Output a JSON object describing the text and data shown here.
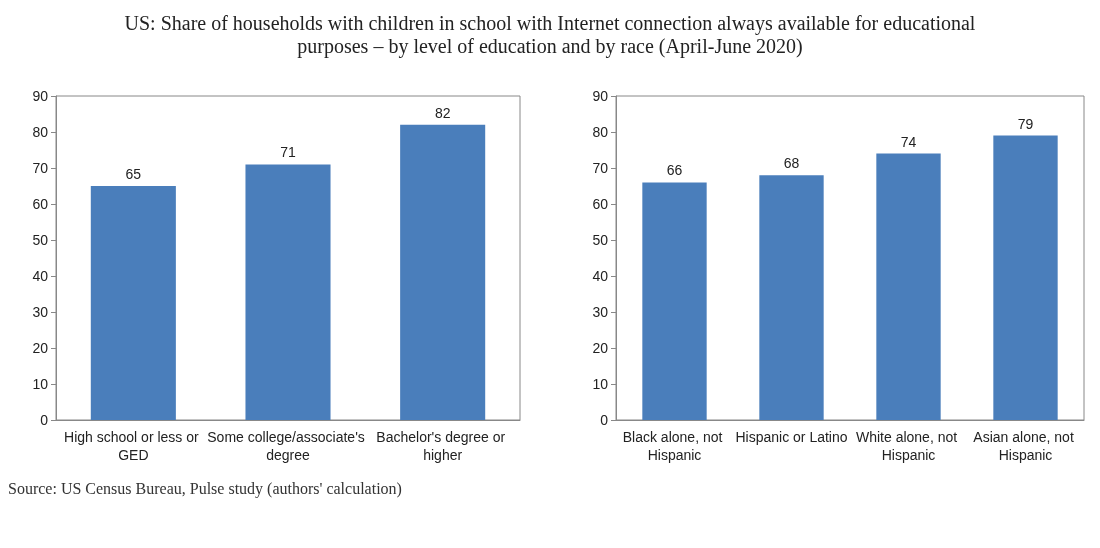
{
  "chart_data": [
    {
      "type": "bar",
      "title": "US: Share of households with children in school with Internet connection always available for educational purposes – by level of education and by race (April-June 2020)",
      "categories": [
        "High school or less or GED",
        "Some college/associate's degree",
        "Bachelor's degree or higher"
      ],
      "values": [
        65,
        71,
        82
      ],
      "color": "#4a7ebb",
      "ylim": [
        0,
        90
      ],
      "yticks": [
        0,
        10,
        20,
        30,
        40,
        50,
        60,
        70,
        80,
        90
      ],
      "data_labels": true,
      "grid": false,
      "annotations": [
        "Source: US Census Bureau, Pulse study (authors' calculation)"
      ]
    },
    {
      "type": "bar",
      "categories": [
        "Black alone, not Hispanic",
        "Hispanic or Latino",
        "White alone, not Hispanic",
        "Asian alone, not Hispanic"
      ],
      "values": [
        66,
        68,
        74,
        79
      ],
      "color": "#4a7ebb",
      "ylim": [
        0,
        90
      ],
      "yticks": [
        0,
        10,
        20,
        30,
        40,
        50,
        60,
        70,
        80,
        90
      ],
      "data_labels": true,
      "grid": false
    }
  ]
}
